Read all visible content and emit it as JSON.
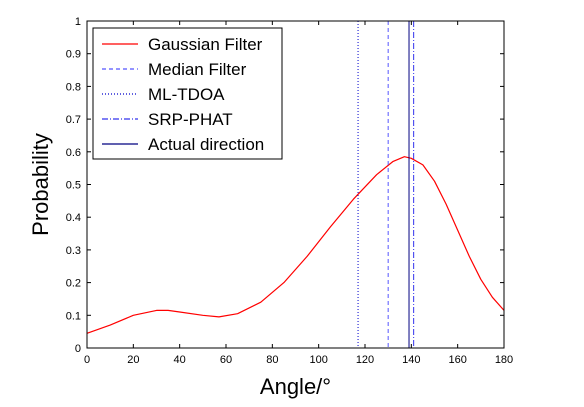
{
  "chart_data": {
    "type": "line",
    "title": "",
    "xlabel": "Angle/°",
    "ylabel": "Probability",
    "xlim": [
      0,
      180
    ],
    "ylim": [
      0,
      1
    ],
    "xticks": [
      0,
      20,
      40,
      60,
      80,
      100,
      120,
      140,
      160,
      180
    ],
    "yticks": [
      0,
      0.1,
      0.2,
      0.3,
      0.4,
      0.5,
      0.6,
      0.7,
      0.8,
      0.9,
      1
    ],
    "xtick_labels": [
      "0",
      "20",
      "40",
      "60",
      "80",
      "100",
      "120",
      "140",
      "160",
      "180"
    ],
    "ytick_labels": [
      "0",
      "0.1",
      "0.2",
      "0.3",
      "0.4",
      "0.5",
      "0.6",
      "0.7",
      "0.8",
      "0.9",
      "1"
    ],
    "grid": false,
    "legend_position": "top-left",
    "series": [
      {
        "name": "Gaussian Filter",
        "style": "solid",
        "color": "#ff0000",
        "x": [
          0,
          10,
          20,
          30,
          35,
          40,
          50,
          57,
          65,
          75,
          85,
          95,
          105,
          115,
          125,
          132,
          137,
          140,
          145,
          150,
          155,
          160,
          165,
          170,
          175,
          180
        ],
        "y": [
          0.045,
          0.07,
          0.1,
          0.115,
          0.115,
          0.11,
          0.1,
          0.095,
          0.105,
          0.14,
          0.2,
          0.28,
          0.37,
          0.455,
          0.53,
          0.57,
          0.585,
          0.58,
          0.56,
          0.51,
          0.44,
          0.36,
          0.28,
          0.21,
          0.155,
          0.115
        ]
      },
      {
        "name": "Median Filter",
        "style": "dashed",
        "color": "#5555ff",
        "vertical_at": 130
      },
      {
        "name": "ML-TDOA",
        "style": "dotted",
        "color": "#0000cc",
        "vertical_at": 117
      },
      {
        "name": "SRP-PHAT",
        "style": "dashdot",
        "color": "#3333ee",
        "vertical_at": 141
      },
      {
        "name": "Actual direction",
        "style": "solid",
        "color": "#000080",
        "vertical_at": 139
      }
    ]
  }
}
